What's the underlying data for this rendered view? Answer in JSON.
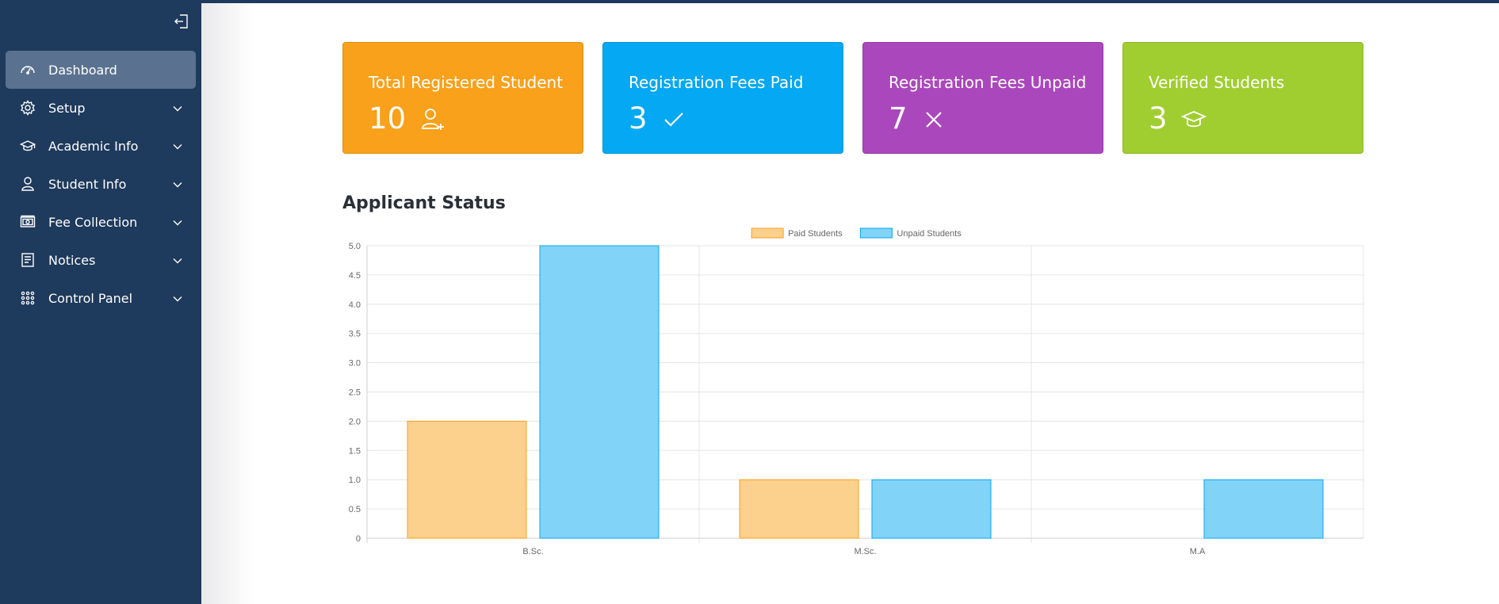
{
  "sidebar": {
    "collapse_icon": "collapse-left-icon",
    "items": [
      {
        "label": "Dashboard",
        "icon": "dashboard-gauge-icon",
        "active": true,
        "has_children": false
      },
      {
        "label": "Setup",
        "icon": "gear-icon",
        "active": false,
        "has_children": true
      },
      {
        "label": "Academic Info",
        "icon": "graduation-cap-icon",
        "active": false,
        "has_children": true
      },
      {
        "label": "Student Info",
        "icon": "user-icon",
        "active": false,
        "has_children": true
      },
      {
        "label": "Fee Collection",
        "icon": "money-icon",
        "active": false,
        "has_children": true
      },
      {
        "label": "Notices",
        "icon": "notice-icon",
        "active": false,
        "has_children": true
      },
      {
        "label": "Control Panel",
        "icon": "grid-dots-icon",
        "active": false,
        "has_children": true
      }
    ]
  },
  "cards": [
    {
      "title": "Total Registered Student",
      "value": "10",
      "icon": "user-plus-icon",
      "color": "#f9a11b"
    },
    {
      "title": "Registration Fees Paid",
      "value": "3",
      "icon": "check-icon",
      "color": "#05a8f2"
    },
    {
      "title": "Registration Fees Unpaid",
      "value": "7",
      "icon": "close-icon",
      "color": "#ab47bc"
    },
    {
      "title": "Verified Students",
      "value": "3",
      "icon": "graduation-cap-icon",
      "color": "#a0ce30"
    }
  ],
  "section": {
    "title": "Applicant Status"
  },
  "chart_data": {
    "type": "bar",
    "title": "",
    "xlabel": "",
    "ylabel": "",
    "categories": [
      "B.Sc.",
      "M.Sc.",
      "M.A"
    ],
    "series": [
      {
        "name": "Paid Students",
        "values": [
          2,
          1,
          0
        ],
        "fill": "#fcd08d",
        "stroke": "#f9a11b"
      },
      {
        "name": "Unpaid Students",
        "values": [
          5,
          1,
          1
        ],
        "fill": "#82d3f8",
        "stroke": "#05a8f2"
      }
    ],
    "ylim": [
      0,
      5
    ],
    "yticks": [
      "0",
      "0.5",
      "1.0",
      "1.5",
      "2.0",
      "2.5",
      "3.0",
      "3.5",
      "4.0",
      "4.5",
      "5.0"
    ],
    "grid": true,
    "legend": "top-center"
  }
}
